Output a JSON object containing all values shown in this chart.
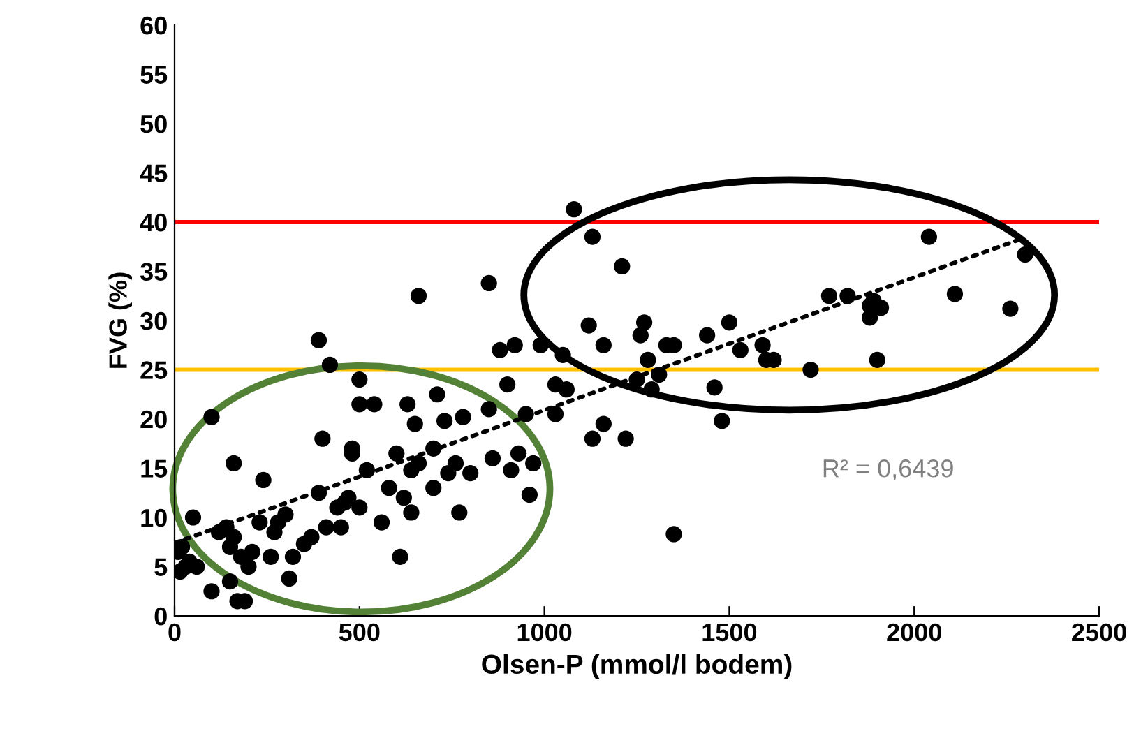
{
  "chart_data": {
    "type": "scatter",
    "xlabel": "Olsen-P (mmol/l bodem)",
    "ylabel": "FVG (%)",
    "xlim": [
      0,
      2500
    ],
    "xticks": [
      0,
      500,
      1000,
      1500,
      2000,
      2500
    ],
    "ylim": [
      0,
      60
    ],
    "yticks": [
      0,
      5,
      10,
      15,
      20,
      25,
      30,
      35,
      40,
      45,
      50,
      55,
      60
    ],
    "marker": "circle",
    "series": [
      {
        "color": "#000000",
        "x": [
          10,
          20,
          15,
          30,
          40,
          50,
          60,
          100,
          100,
          120,
          140,
          150,
          160,
          150,
          160,
          170,
          180,
          190,
          200,
          210,
          230,
          240,
          260,
          270,
          280,
          300,
          310,
          320,
          350,
          370,
          390,
          390,
          400,
          410,
          420,
          440,
          450,
          460,
          470,
          480,
          480,
          500,
          500,
          500,
          520,
          540,
          560,
          580,
          600,
          610,
          620,
          630,
          640,
          640,
          650,
          660,
          660,
          700,
          700,
          710,
          730,
          740,
          760,
          770,
          780,
          800,
          850,
          850,
          860,
          880,
          900,
          910,
          920,
          930,
          950,
          960,
          970,
          990,
          1030,
          1030,
          1050,
          1060,
          1080,
          1120,
          1130,
          1130,
          1160,
          1160,
          1210,
          1220,
          1250,
          1260,
          1270,
          1280,
          1290,
          1310,
          1330,
          1350,
          1350,
          1440,
          1460,
          1480,
          1500,
          1530,
          1590,
          1600,
          1620,
          1720,
          1770,
          1820,
          1880,
          1880,
          1890,
          1900,
          1910,
          2040,
          2110,
          2260,
          2300
        ],
        "values": [
          6.5,
          7,
          4.5,
          5,
          5.5,
          10,
          5,
          2.5,
          20.2,
          8.5,
          9,
          7,
          8,
          3.5,
          15.5,
          1.5,
          6,
          1.5,
          5,
          6.5,
          9.5,
          13.8,
          6,
          8.5,
          9.5,
          10.3,
          3.8,
          6,
          7.3,
          8,
          12.5,
          28,
          18,
          9,
          25.5,
          11,
          9,
          11.5,
          12,
          17,
          16.5,
          24,
          21.5,
          11,
          14.8,
          21.5,
          9.5,
          13,
          16.5,
          6,
          12,
          21.5,
          14.8,
          10.5,
          19.5,
          32.5,
          15.5,
          13,
          17,
          22.5,
          19.8,
          14.5,
          15.5,
          10.5,
          20.2,
          14.5,
          33.8,
          21,
          16,
          27,
          23.5,
          14.8,
          27.5,
          16.5,
          20.5,
          12.3,
          15.5,
          27.5,
          20.5,
          23.5,
          26.5,
          23,
          41.3,
          29.5,
          38.5,
          18,
          27.5,
          19.5,
          35.5,
          18,
          24,
          28.5,
          29.8,
          26,
          23,
          24.5,
          27.5,
          8.3,
          27.5,
          28.5,
          23.2,
          19.8,
          29.8,
          27,
          27.5,
          26,
          26,
          25,
          32.5,
          32.5,
          31.5,
          30.3,
          32,
          26,
          31.3,
          38.5,
          32.7,
          31.2,
          36.7
        ]
      },
      {
        "type": "line",
        "color": "#000000",
        "line_style": "dotted",
        "marker": "none",
        "x": [
          0,
          2290
        ],
        "values": [
          7.4,
          38.3
        ]
      }
    ],
    "ref_lines": [
      {
        "axis": "y",
        "value": 40,
        "color": "#ff0000"
      },
      {
        "axis": "y",
        "value": 25,
        "color": "#ffc000"
      }
    ],
    "annotations": [
      "R² = 0,6439"
    ]
  }
}
